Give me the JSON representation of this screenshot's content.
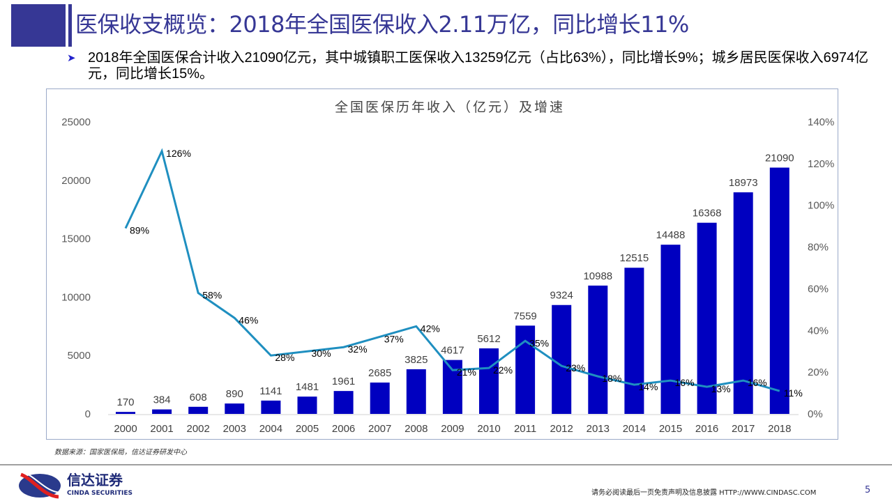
{
  "header": {
    "title": "医保收支概览：2018年全国医保收入2.11万亿，同比增长11%"
  },
  "bullet": {
    "icon": "arrow-right-icon",
    "text": "2018年全国医保合计收入21090亿元，其中城镇职工医保收入13259亿元（占比63%），同比增长9%；城乡居民医保收入6974亿元，同比增长15%。"
  },
  "chart_data": {
    "type": "bar+line",
    "title": "全国医保历年收入（亿元）及增速",
    "categories": [
      "2000",
      "2001",
      "2002",
      "2003",
      "2004",
      "2005",
      "2006",
      "2007",
      "2008",
      "2009",
      "2010",
      "2011",
      "2012",
      "2013",
      "2014",
      "2015",
      "2016",
      "2017",
      "2018"
    ],
    "series": [
      {
        "type": "bar",
        "axis": "left",
        "values": [
          170,
          384,
          608,
          890,
          1141,
          1481,
          1961,
          2685,
          3825,
          4617,
          5612,
          7559,
          9324,
          10988,
          12515,
          14488,
          16368,
          18973,
          21090
        ],
        "color": "#0000c0"
      },
      {
        "type": "line",
        "axis": "right",
        "values": [
          89,
          126,
          58,
          46,
          28,
          30,
          32,
          37,
          42,
          21,
          22,
          35,
          23,
          18,
          14,
          16,
          13,
          16,
          11
        ],
        "labels": [
          "89%",
          "126%",
          "58%",
          "46%",
          "28%",
          "30%",
          "32%",
          "37%",
          "42%",
          "21%",
          "22%",
          "35%",
          "23%",
          "18%",
          "14%",
          "16%",
          "13%",
          "16%",
          "11%"
        ],
        "color": "#1f8fc0"
      }
    ],
    "left_axis": {
      "range": [
        0,
        25000
      ],
      "ticks": [
        "0",
        "5000",
        "10000",
        "15000",
        "20000",
        "25000"
      ]
    },
    "right_axis": {
      "range": [
        0,
        140
      ],
      "ticks": [
        "0%",
        "20%",
        "40%",
        "60%",
        "80%",
        "100%",
        "120%",
        "140%"
      ]
    },
    "grid": false,
    "legend": "none"
  },
  "source": "数据来源：国家医保局，信达证券研发中心",
  "footer": {
    "logo_cn": "信达证券",
    "logo_en": "CINDA SECURITIES",
    "disclaimer": "请务必阅读最后一页免责声明及信息披露  HTTP://WWW.CINDASC.COM",
    "page": "5"
  }
}
